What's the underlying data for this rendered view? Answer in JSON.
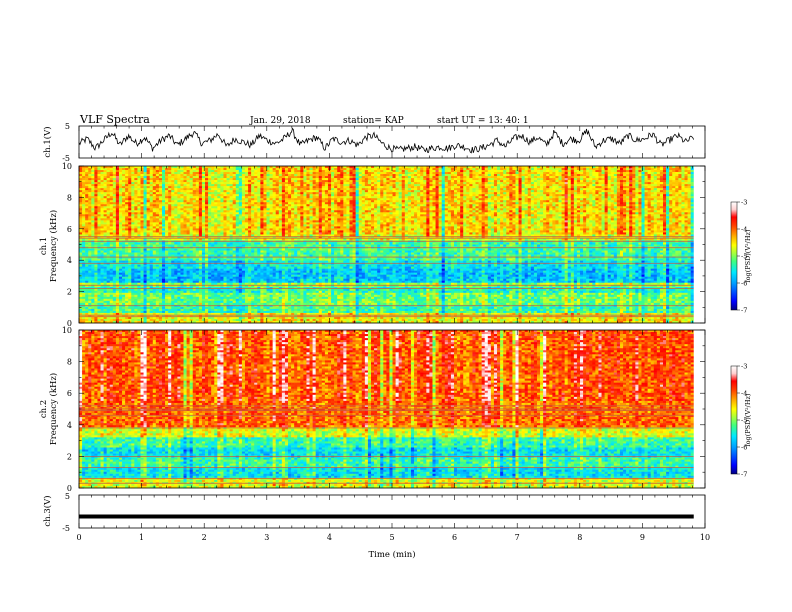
{
  "header": {
    "title": "VLF Spectra",
    "date": "Jan. 29, 2018",
    "station": "station= KAP",
    "start": "start UT =  13: 40: 1"
  },
  "colors": {
    "colormap": [
      "#000080",
      "#0000ff",
      "#00a0ff",
      "#00e8ff",
      "#40ff80",
      "#a0ff40",
      "#ffff00",
      "#ffb000",
      "#ff4000",
      "#ff0000",
      "#ffd0d0",
      "#ffffff"
    ]
  },
  "chart_data": [
    {
      "type": "line",
      "ylabel": "ch.1(V)",
      "xlim": [
        0,
        10
      ],
      "ylim": [
        -5,
        5
      ],
      "yticks": [
        "5",
        "-5"
      ],
      "x_end": 9.82,
      "series": [
        {
          "description_values": "noisy waveform",
          "values": [
            -0.5,
            1,
            -2,
            0.5,
            3,
            -1,
            2,
            -0.5,
            1.5,
            -2,
            0.5,
            2,
            -1,
            1,
            3,
            -0.5,
            0.5,
            2.5,
            -1.5,
            1,
            0,
            -1,
            2,
            0.5,
            -0.5,
            1,
            3.5,
            -1,
            0.5,
            1.5,
            -2,
            1,
            0,
            0.5,
            -1,
            1.5,
            2,
            -0.5,
            -2,
            -2.5,
            -2,
            -1.5,
            -2.5,
            -2,
            -1.5,
            -2,
            -1,
            -1.5,
            -2.5,
            -2,
            -1,
            0.5,
            -1.5,
            1,
            2,
            0,
            1.5,
            -1,
            3,
            -0.5,
            1,
            0.5,
            3.5,
            -1.5,
            0.5,
            1,
            -0.5,
            2,
            0.5,
            1,
            2.5,
            -1,
            0.5,
            2,
            0,
            1.5
          ]
        }
      ]
    },
    {
      "type": "heatmap",
      "xlabel": "",
      "ylabel": "ch.1\nFrequency (kHz)",
      "xlim": [
        0,
        10
      ],
      "ylim": [
        0,
        10
      ],
      "yticks": [
        "0",
        "2",
        "4",
        "6",
        "8",
        "10"
      ],
      "x_end": 9.82,
      "colorbar": {
        "label": "log(PSD)(V²/Hz)",
        "range": [
          -7,
          -3
        ],
        "ticks": [
          "-3",
          "-4",
          "-5",
          "-6",
          "-7"
        ]
      },
      "bands": [
        {
          "f0": 0,
          "f1": 0.6,
          "level": -4.6
        },
        {
          "f0": 0.6,
          "f1": 1.1,
          "level": -5.3
        },
        {
          "f0": 1.1,
          "f1": 1.9,
          "level": -5.1
        },
        {
          "f0": 1.9,
          "f1": 2.3,
          "level": -5.4
        },
        {
          "f0": 2.3,
          "f1": 2.6,
          "level": -5.0
        },
        {
          "f0": 2.6,
          "f1": 3.4,
          "level": -5.8
        },
        {
          "f0": 3.4,
          "f1": 4.0,
          "level": -5.6
        },
        {
          "f0": 4.0,
          "f1": 5.2,
          "level": -5.3
        },
        {
          "f0": 5.2,
          "f1": 5.6,
          "level": -4.7
        },
        {
          "f0": 5.6,
          "f1": 10,
          "level": -4.5
        }
      ],
      "lines_khz": [
        0.4,
        0.5,
        1.1,
        2.2,
        2.4,
        3.8,
        4.2,
        4.8,
        5.2,
        5.4,
        5.5
      ]
    },
    {
      "type": "heatmap",
      "xlabel": "",
      "ylabel": "ch.2\nFrequency (kHz)",
      "xlim": [
        0,
        10
      ],
      "ylim": [
        0,
        10
      ],
      "yticks": [
        "0",
        "2",
        "4",
        "6",
        "8",
        "10"
      ],
      "x_end": 9.82,
      "colorbar": {
        "label": "log(PSD)(V²/Hz)",
        "range": [
          -7,
          -3
        ],
        "ticks": [
          "-3",
          "-4",
          "-5",
          "-6",
          "-7"
        ]
      },
      "bands": [
        {
          "f0": 0,
          "f1": 0.6,
          "level": -4.7
        },
        {
          "f0": 0.6,
          "f1": 1.3,
          "level": -5.6
        },
        {
          "f0": 1.3,
          "f1": 1.9,
          "level": -5.3
        },
        {
          "f0": 1.9,
          "f1": 2.6,
          "level": -5.6
        },
        {
          "f0": 2.6,
          "f1": 3.2,
          "level": -5.3
        },
        {
          "f0": 3.2,
          "f1": 3.8,
          "level": -4.7
        },
        {
          "f0": 3.8,
          "f1": 5.5,
          "level": -4.0
        },
        {
          "f0": 5.5,
          "f1": 10,
          "level": -3.9
        }
      ],
      "lines_khz": [
        0.3,
        0.6,
        1.3,
        2.0,
        3.8,
        4.6,
        4.9,
        5.0,
        5.2
      ]
    },
    {
      "type": "line",
      "ylabel": "ch.3(V)",
      "xlabel": "Time (min)",
      "xlim": [
        0,
        10
      ],
      "ylim": [
        -5,
        5
      ],
      "yticks": [
        "5",
        "-5"
      ],
      "xticks": [
        "0",
        "1",
        "2",
        "3",
        "4",
        "5",
        "6",
        "7",
        "8",
        "9",
        "10"
      ],
      "x_end": 9.82,
      "series": [
        {
          "values": [
            -1.5,
            -1.5
          ]
        }
      ]
    }
  ]
}
